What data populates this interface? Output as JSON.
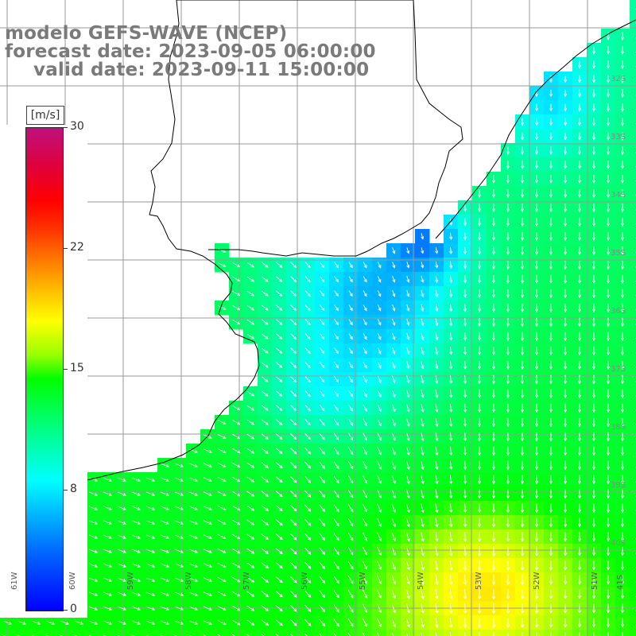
{
  "title": {
    "line1": "modelo GEFS-WAVE (NCEP)",
    "line2": "forecast date: 2023-09-05 06:00:00",
    "line3": "valid date: 2023-09-11 15:00:00"
  },
  "colorbar": {
    "units": "[m/s]",
    "ticks": [
      "30",
      "22",
      "15",
      "8",
      "0"
    ],
    "tick_values": [
      30,
      22,
      15,
      8,
      0
    ],
    "min": 0,
    "max": 30,
    "colors": [
      "#0000ff",
      "#00ccff",
      "#00ffff",
      "#00ff00",
      "#ffff00",
      "#ff8000",
      "#ff0000",
      "#c0107f"
    ]
  },
  "grid": {
    "lon_labels": [
      "61W",
      "60W",
      "59W",
      "58W",
      "57W",
      "56W",
      "55W",
      "54W",
      "53W",
      "52W",
      "51W",
      "41S"
    ],
    "lat_labels": [
      "32S",
      "33S",
      "34S",
      "35S",
      "36S",
      "37S",
      "38S",
      "39S",
      "40S"
    ]
  },
  "map": {
    "land_color": "#ffffff",
    "grid_color": "#9a9a9a",
    "coast_color": "#000000",
    "arrow_color": "#ffffff"
  }
}
